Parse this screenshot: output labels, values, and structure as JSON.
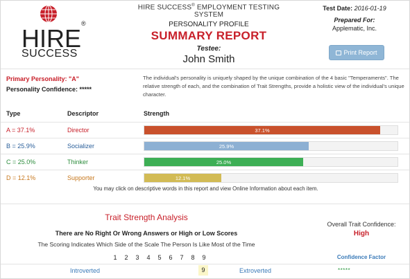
{
  "header": {
    "logo_word_top": "HIRE",
    "logo_word_bottom": "SUCCESS",
    "system_name": "HIRE SUCCESS",
    "system_name_suffix": " EMPLOYMENT TESTING SYSTEM",
    "profile_title": "PERSONALITY PROFILE",
    "report_title": "SUMMARY REPORT",
    "testee_label": "Testee:",
    "testee_name": "John Smith",
    "test_date_label": "Test Date:",
    "test_date_value": "2016-01-19",
    "prepared_for_label": "Prepared For:",
    "prepared_for_value": "Applematic, Inc.",
    "print_button_label": "Print Report"
  },
  "primary": {
    "primary_line": "Primary Personality: \"A\"",
    "confidence_line": "Personality Confidence: *****",
    "intro_text": "The individual's personality is uniquely shaped by the unique combination of the 4 basic \"Temperaments\". The relative strength of each, and the combination of Trait Strengths, provide a holistic view of the individual's unique character."
  },
  "table": {
    "headers": {
      "type": "Type",
      "descriptor": "Descriptor",
      "strength": "Strength"
    },
    "rows": [
      {
        "type": "A = 37.1%",
        "descriptor": "Director",
        "bar_label": "37.1%",
        "value": 0.371,
        "color": "#c9512c"
      },
      {
        "type": "B = 25.9%",
        "descriptor": "Socializer",
        "bar_label": "25.9%",
        "value": 0.259,
        "color": "#8db0d3"
      },
      {
        "type": "C = 25.0%",
        "descriptor": "Thinker",
        "bar_label": "25.0%",
        "value": 0.25,
        "color": "#3daf55"
      },
      {
        "type": "D = 12.1%",
        "descriptor": "Supporter",
        "bar_label": "12.1%",
        "value": 0.121,
        "color": "#d2bb55"
      }
    ],
    "text_colors": [
      "#c8202a",
      "#2a5f9a",
      "#2c8c3c",
      "#c7781e"
    ],
    "click_note": "You may click on descriptive words in this report and view Online Information about each item."
  },
  "trait": {
    "title": "Trait Strength Analysis",
    "no_right_wrong": "There are No Right Or Wrong Answers or High or Low Scores",
    "scoring_note": "The Scoring Indicates Which Side of the Scale The Person Is Like Most of the Time",
    "overall_label": "Overall Trait Confidence:",
    "overall_value": "High",
    "confidence_factor_label": "Confidence Factor",
    "scale_numbers": [
      "1",
      "2",
      "3",
      "4",
      "5",
      "6",
      "7",
      "8",
      "9"
    ],
    "rows": [
      {
        "left": "Introverted",
        "score": "9",
        "right": "Extroverted",
        "confidence": "*****"
      }
    ]
  }
}
